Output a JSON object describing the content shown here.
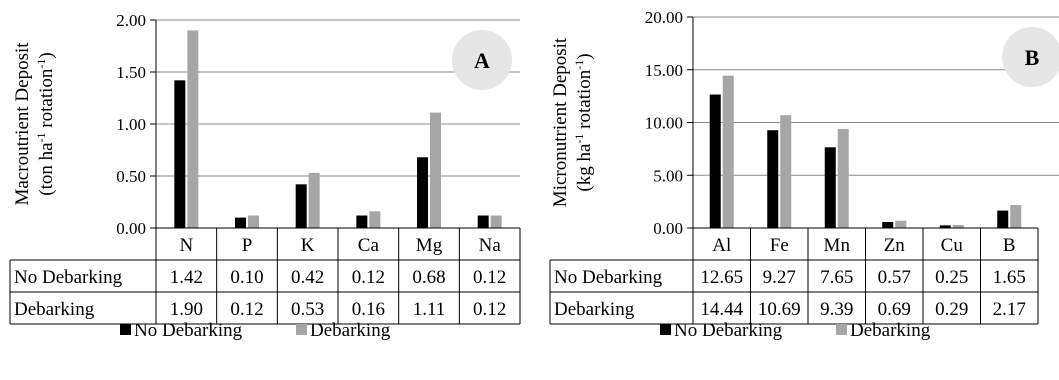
{
  "colors": {
    "no_debarking": "#000000",
    "debarking": "#a6a6a6",
    "badge_bg": "#e6e6e6"
  },
  "legend": {
    "no_debarking": "No Debarking",
    "debarking": "Debarking"
  },
  "chart_data": [
    {
      "type": "bar",
      "badge": "A",
      "ylabel_line1": "Macroutrient Deposit",
      "ylabel_line2_pre": "(ton ha",
      "ylabel_line2_sup1": "-1",
      "ylabel_line2_mid": " rotation",
      "ylabel_line2_sup2": "-1",
      "ylabel_line2_post": ")",
      "ylim": [
        0,
        2
      ],
      "yticks": [
        "0.00",
        "0.50",
        "1.00",
        "1.50",
        "2.00"
      ],
      "categories": [
        "N",
        "P",
        "K",
        "Ca",
        "Mg",
        "Na"
      ],
      "series": [
        {
          "name": "No Debarking",
          "values": [
            1.42,
            0.1,
            0.42,
            0.12,
            0.68,
            0.12
          ],
          "labels": [
            "1.42",
            "0.10",
            "0.42",
            "0.12",
            "0.68",
            "0.12"
          ]
        },
        {
          "name": "Debarking",
          "values": [
            1.9,
            0.12,
            0.53,
            0.16,
            1.11,
            0.12
          ],
          "labels": [
            "1.90",
            "0.12",
            "0.53",
            "0.16",
            "1.11",
            "0.12"
          ]
        }
      ]
    },
    {
      "type": "bar",
      "badge": "B",
      "ylabel_line1": "Micronutrient Deposit",
      "ylabel_line2_pre": "(kg ha",
      "ylabel_line2_sup1": "-1",
      "ylabel_line2_mid": " rotation",
      "ylabel_line2_sup2": "-1",
      "ylabel_line2_post": ")",
      "ylim": [
        0,
        20
      ],
      "yticks": [
        "0.00",
        "5.00",
        "10.00",
        "15.00",
        "20.00"
      ],
      "categories": [
        "Al",
        "Fe",
        "Mn",
        "Zn",
        "Cu",
        "B"
      ],
      "series": [
        {
          "name": "No Debarking",
          "values": [
            12.65,
            9.27,
            7.65,
            0.57,
            0.25,
            1.65
          ],
          "labels": [
            "12.65",
            "9.27",
            "7.65",
            "0.57",
            "0.25",
            "1.65"
          ]
        },
        {
          "name": "Debarking",
          "values": [
            14.44,
            10.69,
            9.39,
            0.69,
            0.29,
            2.17
          ],
          "labels": [
            "14.44",
            "10.69",
            "9.39",
            "0.69",
            "0.29",
            "2.17"
          ]
        }
      ]
    }
  ]
}
